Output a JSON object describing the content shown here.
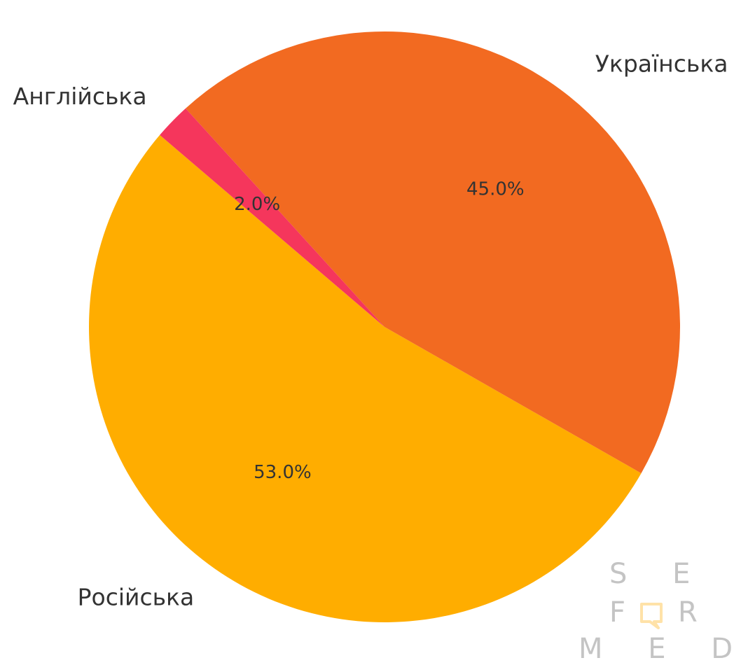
{
  "chart_data": {
    "type": "pie",
    "categories": [
      "Російська",
      "Українська",
      "Англійська"
    ],
    "values": [
      53.0,
      45.0,
      2.0
    ],
    "labels": [
      "53.0%",
      "45.0%",
      "2.0%"
    ],
    "colors": [
      "#FFAD00",
      "#F26A21",
      "#F5365C"
    ],
    "start_angle_deg": 139.5,
    "direction": "counterclockwise",
    "title": "",
    "legend": "none"
  },
  "watermark": {
    "line1": "S E O",
    "line2_left": "F",
    "line2_right": "R",
    "line3": "M E D I A",
    "text_color": "#c4c4c4",
    "accent_color": "#FFE2A8"
  }
}
